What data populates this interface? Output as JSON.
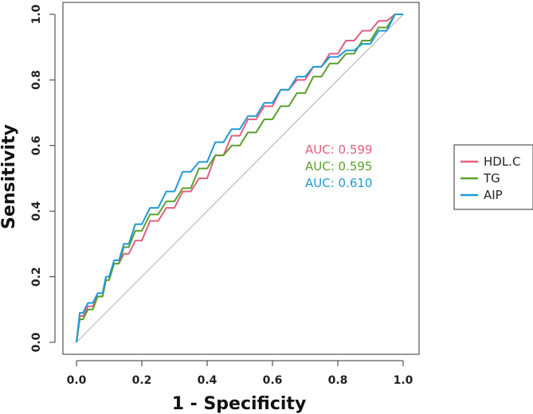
{
  "chart_data": {
    "type": "line",
    "title": "",
    "xlabel": "1 - Specificity",
    "ylabel": "Sensitivity",
    "xlim": [
      0,
      1
    ],
    "ylim": [
      0,
      1
    ],
    "xticks": [
      "0.0",
      "0.2",
      "0.4",
      "0.6",
      "0.8",
      "1.0"
    ],
    "yticks": [
      "0.0",
      "0.2",
      "0.4",
      "0.6",
      "0.8",
      "1.0"
    ],
    "legend_position": "right",
    "reference_line": {
      "x": [
        0,
        1
      ],
      "y": [
        0,
        1
      ],
      "color": "#b0b0b0"
    },
    "series": [
      {
        "name": "HDL.C",
        "color": "#e0607e",
        "auc_label": "AUC: 0.599",
        "x": [
          0,
          0.02,
          0.05,
          0.08,
          0.1,
          0.13,
          0.16,
          0.2,
          0.25,
          0.3,
          0.35,
          0.4,
          0.45,
          0.5,
          0.55,
          0.6,
          0.65,
          0.7,
          0.75,
          0.8,
          0.85,
          0.9,
          0.95,
          1.0
        ],
        "y": [
          0,
          0.08,
          0.11,
          0.14,
          0.19,
          0.24,
          0.27,
          0.31,
          0.37,
          0.41,
          0.46,
          0.5,
          0.57,
          0.63,
          0.68,
          0.72,
          0.77,
          0.8,
          0.84,
          0.88,
          0.92,
          0.95,
          0.98,
          1.0
        ]
      },
      {
        "name": "TG",
        "color": "#5aa02c",
        "auc_label": "AUC: 0.595",
        "x": [
          0,
          0.02,
          0.05,
          0.08,
          0.1,
          0.13,
          0.16,
          0.2,
          0.25,
          0.3,
          0.35,
          0.4,
          0.45,
          0.5,
          0.55,
          0.6,
          0.65,
          0.7,
          0.75,
          0.8,
          0.85,
          0.9,
          0.95,
          1.0
        ],
        "y": [
          0,
          0.07,
          0.1,
          0.14,
          0.19,
          0.24,
          0.29,
          0.34,
          0.39,
          0.43,
          0.47,
          0.53,
          0.57,
          0.6,
          0.64,
          0.68,
          0.72,
          0.76,
          0.81,
          0.85,
          0.88,
          0.92,
          0.96,
          1.0
        ]
      },
      {
        "name": "AIP",
        "color": "#1f9ad6",
        "auc_label": "AUC: 0.610",
        "x": [
          0,
          0.02,
          0.05,
          0.08,
          0.1,
          0.13,
          0.16,
          0.2,
          0.25,
          0.3,
          0.35,
          0.4,
          0.45,
          0.5,
          0.55,
          0.6,
          0.65,
          0.7,
          0.75,
          0.8,
          0.85,
          0.9,
          0.95,
          1.0
        ],
        "y": [
          0,
          0.09,
          0.12,
          0.15,
          0.2,
          0.25,
          0.3,
          0.36,
          0.41,
          0.46,
          0.52,
          0.55,
          0.61,
          0.65,
          0.69,
          0.73,
          0.77,
          0.81,
          0.84,
          0.87,
          0.89,
          0.91,
          0.95,
          1.0
        ]
      }
    ]
  }
}
